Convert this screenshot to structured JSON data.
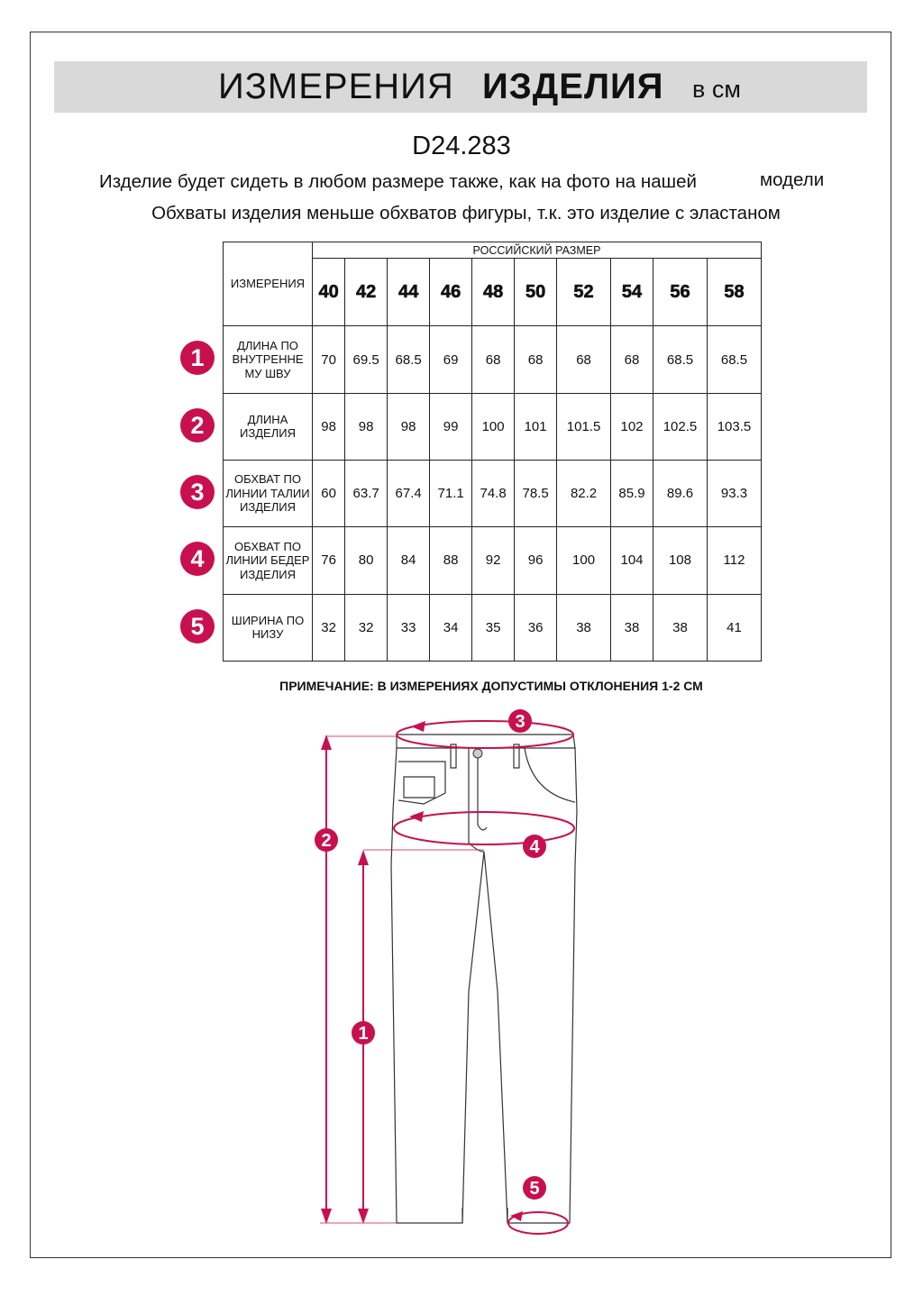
{
  "header": {
    "title_regular": "ИЗМЕРЕНИЯ",
    "title_bold": "ИЗДЕЛИЯ",
    "unit": "в см"
  },
  "article": "D24.283",
  "notes": {
    "line1": "Изделие будет сидеть в любом размере также, как на фото на нашей",
    "line1_end": "модели",
    "line2": "Обхваты изделия меньше обхватов фигуры, т.к. это изделие с эластаном"
  },
  "table": {
    "label_header": "ИЗМЕРЕНИЯ",
    "size_header": "РОССИЙСКИЙ РАЗМЕР",
    "sizes": [
      "40",
      "42",
      "44",
      "46",
      "48",
      "50",
      "52",
      "54",
      "56",
      "58"
    ],
    "rows": [
      {
        "num": "1",
        "label": "ДЛИНА ПО ВНУТРЕННЕ МУ ШВУ",
        "values": [
          "70",
          "69.5",
          "68.5",
          "69",
          "68",
          "68",
          "68",
          "68",
          "68.5",
          "68.5"
        ]
      },
      {
        "num": "2",
        "label": "ДЛИНА ИЗДЕЛИЯ",
        "values": [
          "98",
          "98",
          "98",
          "99",
          "100",
          "101",
          "101.5",
          "102",
          "102.5",
          "103.5"
        ]
      },
      {
        "num": "3",
        "label": "ОБХВАТ ПО ЛИНИИ ТАЛИИ ИЗДЕЛИЯ",
        "values": [
          "60",
          "63.7",
          "67.4",
          "71.1",
          "74.8",
          "78.5",
          "82.2",
          "85.9",
          "89.6",
          "93.3"
        ]
      },
      {
        "num": "4",
        "label": "ОБХВАТ ПО ЛИНИИ БЕДЕР ИЗДЕЛИЯ",
        "values": [
          "76",
          "80",
          "84",
          "88",
          "92",
          "96",
          "100",
          "104",
          "108",
          "112"
        ]
      },
      {
        "num": "5",
        "label": "ШИРИНА ПО НИЗУ",
        "values": [
          "32",
          "32",
          "33",
          "34",
          "35",
          "36",
          "38",
          "38",
          "38",
          "41"
        ]
      }
    ]
  },
  "footnote": "ПРИМЕЧАНИЕ: В ИЗМЕРЕНИЯХ ДОПУСТИМЫ ОТКЛОНЕНИЯ 1-2 СМ",
  "diagram": {
    "markers": [
      "1",
      "2",
      "3",
      "4",
      "5"
    ]
  },
  "colors": {
    "accent": "#c8104f",
    "banner": "#d9d9d9"
  }
}
